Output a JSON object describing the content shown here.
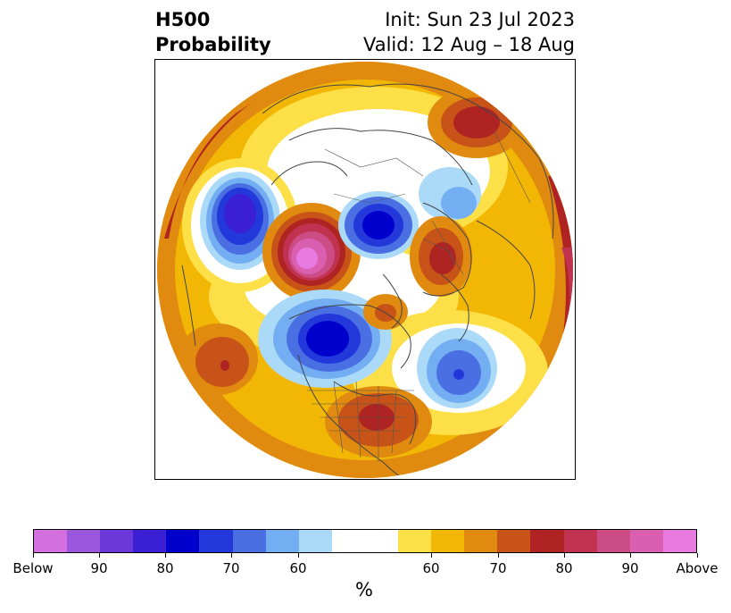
{
  "title": {
    "line1": "H500",
    "line2": "Probability"
  },
  "header": {
    "init": "Init: Sun 23 Jul 2023",
    "valid": "Valid: 12 Aug – 18 Aug"
  },
  "colorbar": {
    "colors": [
      "#d46fe0",
      "#9b56de",
      "#6d38d9",
      "#3a1fd4",
      "#0000cc",
      "#2238db",
      "#4a6fe3",
      "#74aef2",
      "#aadaf8",
      "#ffffff",
      "#ffffff",
      "#fde047",
      "#f2b705",
      "#e08a0f",
      "#c75318",
      "#b02323",
      "#c0324f",
      "#cc4d85",
      "#da5fb0",
      "#e87ae0"
    ],
    "labels": [
      "Below",
      "90",
      "80",
      "70",
      "60",
      "60",
      "70",
      "80",
      "90",
      "Above"
    ],
    "unit": "%"
  }
}
